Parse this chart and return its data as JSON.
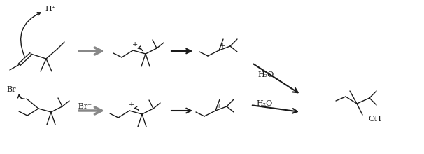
{
  "background_color": "#ffffff",
  "line_color": "#1a1a1a",
  "gray_arrow_color": "#888888",
  "fig_width": 6.06,
  "fig_height": 2.2,
  "dpi": 100,
  "H_label": "H⁺",
  "Br_label": "Br",
  "H2O_label": "H₂O",
  "neg_Br_label": "-Br⁻",
  "plus_sign": "+",
  "OH_label": "OH"
}
